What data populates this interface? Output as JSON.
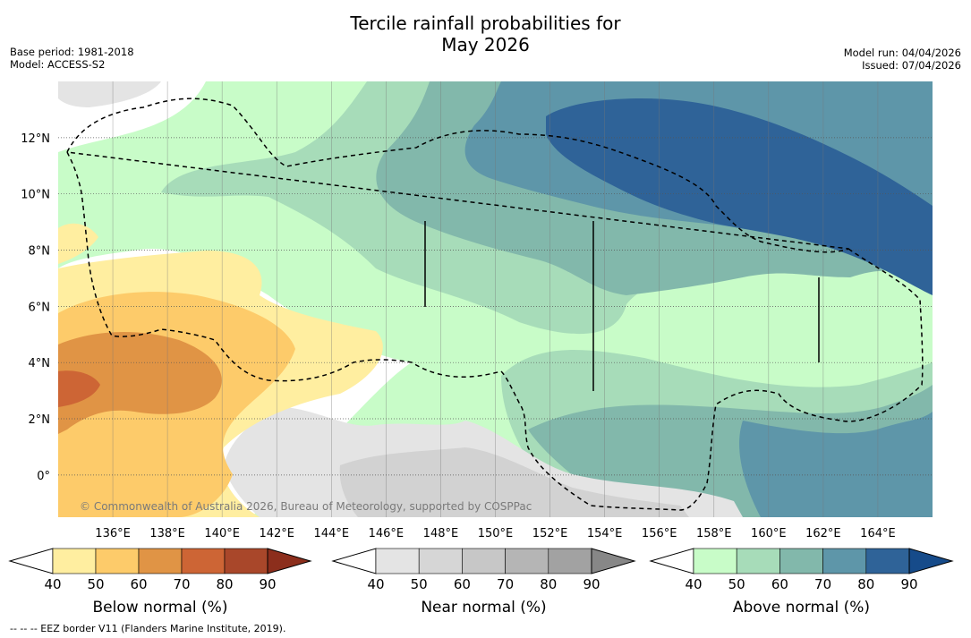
{
  "chart_data": {
    "type": "heatmap",
    "title_line1": "Tercile rainfall probabilities for",
    "title_line2": "May 2026",
    "left_meta": [
      "Base period: 1981-2018",
      "Model: ACCESS-S2"
    ],
    "right_meta": [
      "Model run: 04/04/2026",
      "Issued: 07/04/2026"
    ],
    "x_axis": {
      "ticks": [
        136,
        138,
        140,
        142,
        144,
        146,
        148,
        150,
        152,
        154,
        156,
        158,
        160,
        162,
        164
      ],
      "tick_labels": [
        "136°E",
        "138°E",
        "140°E",
        "142°E",
        "144°E",
        "146°E",
        "148°E",
        "150°E",
        "152°E",
        "154°E",
        "156°E",
        "158°E",
        "160°E",
        "162°E",
        "164°E"
      ],
      "range": [
        134,
        166
      ]
    },
    "y_axis": {
      "ticks": [
        0,
        2,
        4,
        6,
        8,
        10,
        12
      ],
      "tick_labels": [
        "0°",
        "2°N",
        "4°N",
        "6°N",
        "8°N",
        "10°N",
        "12°N"
      ],
      "range": [
        -1.5,
        14
      ]
    },
    "grid": true,
    "copyright": "© Commonwealth of Australia 2026, Bureau of Meteorology, supported by COSPPac",
    "colorbars": [
      {
        "name": "below",
        "label": "Below normal (%)",
        "ticks": [
          "40",
          "50",
          "60",
          "70",
          "80",
          "90"
        ],
        "colors": [
          "#ffeea0",
          "#fdcb6a",
          "#e09445",
          "#cd6535",
          "#a9472a",
          "#8c2e1c"
        ]
      },
      {
        "name": "near",
        "label": "Near normal (%)",
        "ticks": [
          "40",
          "50",
          "60",
          "70",
          "80",
          "90"
        ],
        "colors": [
          "#e4e4e4",
          "#d6d6d6",
          "#c7c7c7",
          "#b5b5b5",
          "#a2a2a2",
          "#878787"
        ]
      },
      {
        "name": "above",
        "label": "Above normal (%)",
        "ticks": [
          "40",
          "50",
          "60",
          "70",
          "80",
          "90"
        ],
        "colors": [
          "#c8fcc8",
          "#a7dcb9",
          "#82b8ab",
          "#5e96a9",
          "#2f6398",
          "#164b8a"
        ]
      }
    ],
    "footnote": "--  --  -- EEZ border V11 (Flanders Marine Institute, 2019)."
  }
}
